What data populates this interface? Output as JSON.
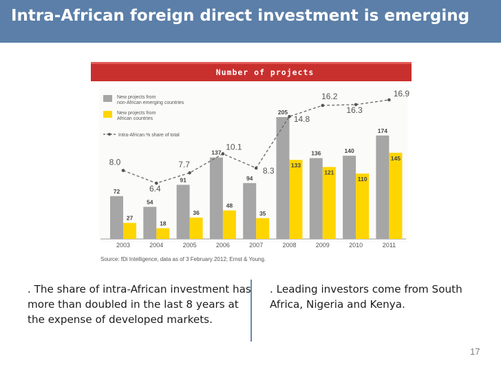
{
  "slide": {
    "title": "Intra-African foreign direct investment is emerging",
    "left_text": ". The share of intra-African investment has more than doubled in the last 8 years at the expense of developed markets.",
    "right_text": ". Leading investors come from South Africa, Nigeria and Kenya.",
    "page_number": "17"
  },
  "colors": {
    "title_bar": "#5b7fa8",
    "header_band": "#c8302e",
    "series_gray": "#a6a6a6",
    "series_yellow": "#ffd500",
    "line": "#666666"
  },
  "chart_data": {
    "type": "bar",
    "title": "Number of projects",
    "categories": [
      "2003",
      "2004",
      "2005",
      "2006",
      "2007",
      "2008",
      "2009",
      "2010",
      "2011"
    ],
    "series": [
      {
        "name": "New projects from non-African emerging countries",
        "values": [
          72,
          54,
          91,
          137,
          94,
          205,
          136,
          140,
          174
        ]
      },
      {
        "name": "New projects from African countries",
        "values": [
          27,
          18,
          36,
          48,
          35,
          133,
          121,
          110,
          145
        ]
      }
    ],
    "line_series": {
      "name": "Intra-African % share of total",
      "values": [
        8.0,
        6.4,
        7.7,
        10.1,
        8.3,
        14.8,
        16.2,
        16.3,
        16.9
      ],
      "labels": [
        "8.0",
        "6.4",
        "7.7",
        "10.1",
        "8.3",
        "14.8",
        "16.2",
        "16.3",
        "16.9"
      ]
    },
    "legend": [
      "New projects from\nnon-African emerging countries",
      "New projects from\nAfrican countries",
      "Intra-African % share of total"
    ],
    "legend_position": "top-left",
    "ylim": [
      0,
      230
    ],
    "source": "Source: fDi Intelligence, data as of 3 February 2012; Ernst & Young.",
    "grid": false
  }
}
